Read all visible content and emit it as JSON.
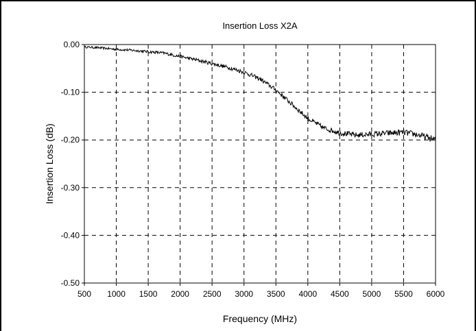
{
  "chart_data": {
    "type": "line",
    "title": "Insertion Loss X2A",
    "xlabel": "Frequency (MHz)",
    "ylabel": "Insertion Loss (dB)",
    "xlim": [
      500,
      6000
    ],
    "ylim": [
      -0.5,
      0.0
    ],
    "x_ticks": [
      500,
      1000,
      1500,
      2000,
      2500,
      3000,
      3500,
      4000,
      4500,
      5000,
      5500,
      6000
    ],
    "x_tick_labels": [
      "500",
      "1000",
      "1500",
      "2000",
      "2500",
      "3000",
      "3500",
      "4000",
      "4500",
      "5000",
      "5500",
      "6000"
    ],
    "y_ticks": [
      0.0,
      -0.1,
      -0.2,
      -0.3,
      -0.4,
      -0.5
    ],
    "y_tick_labels": [
      "0.00",
      "-0.10",
      "-0.20",
      "-0.30",
      "-0.40",
      "-0.50"
    ],
    "grid": true,
    "grid_style": "dashed",
    "legend": "none",
    "series": [
      {
        "color": "#000000",
        "x": [
          500,
          750,
          1000,
          1250,
          1500,
          1750,
          2000,
          2250,
          2500,
          2750,
          3000,
          3250,
          3500,
          3750,
          4000,
          4250,
          4500,
          4750,
          5000,
          5250,
          5500,
          5750,
          6000
        ],
        "y": [
          -0.005,
          -0.007,
          -0.01,
          -0.012,
          -0.015,
          -0.018,
          -0.025,
          -0.032,
          -0.04,
          -0.048,
          -0.058,
          -0.072,
          -0.095,
          -0.125,
          -0.155,
          -0.175,
          -0.185,
          -0.19,
          -0.188,
          -0.186,
          -0.184,
          -0.19,
          -0.2
        ]
      }
    ]
  }
}
